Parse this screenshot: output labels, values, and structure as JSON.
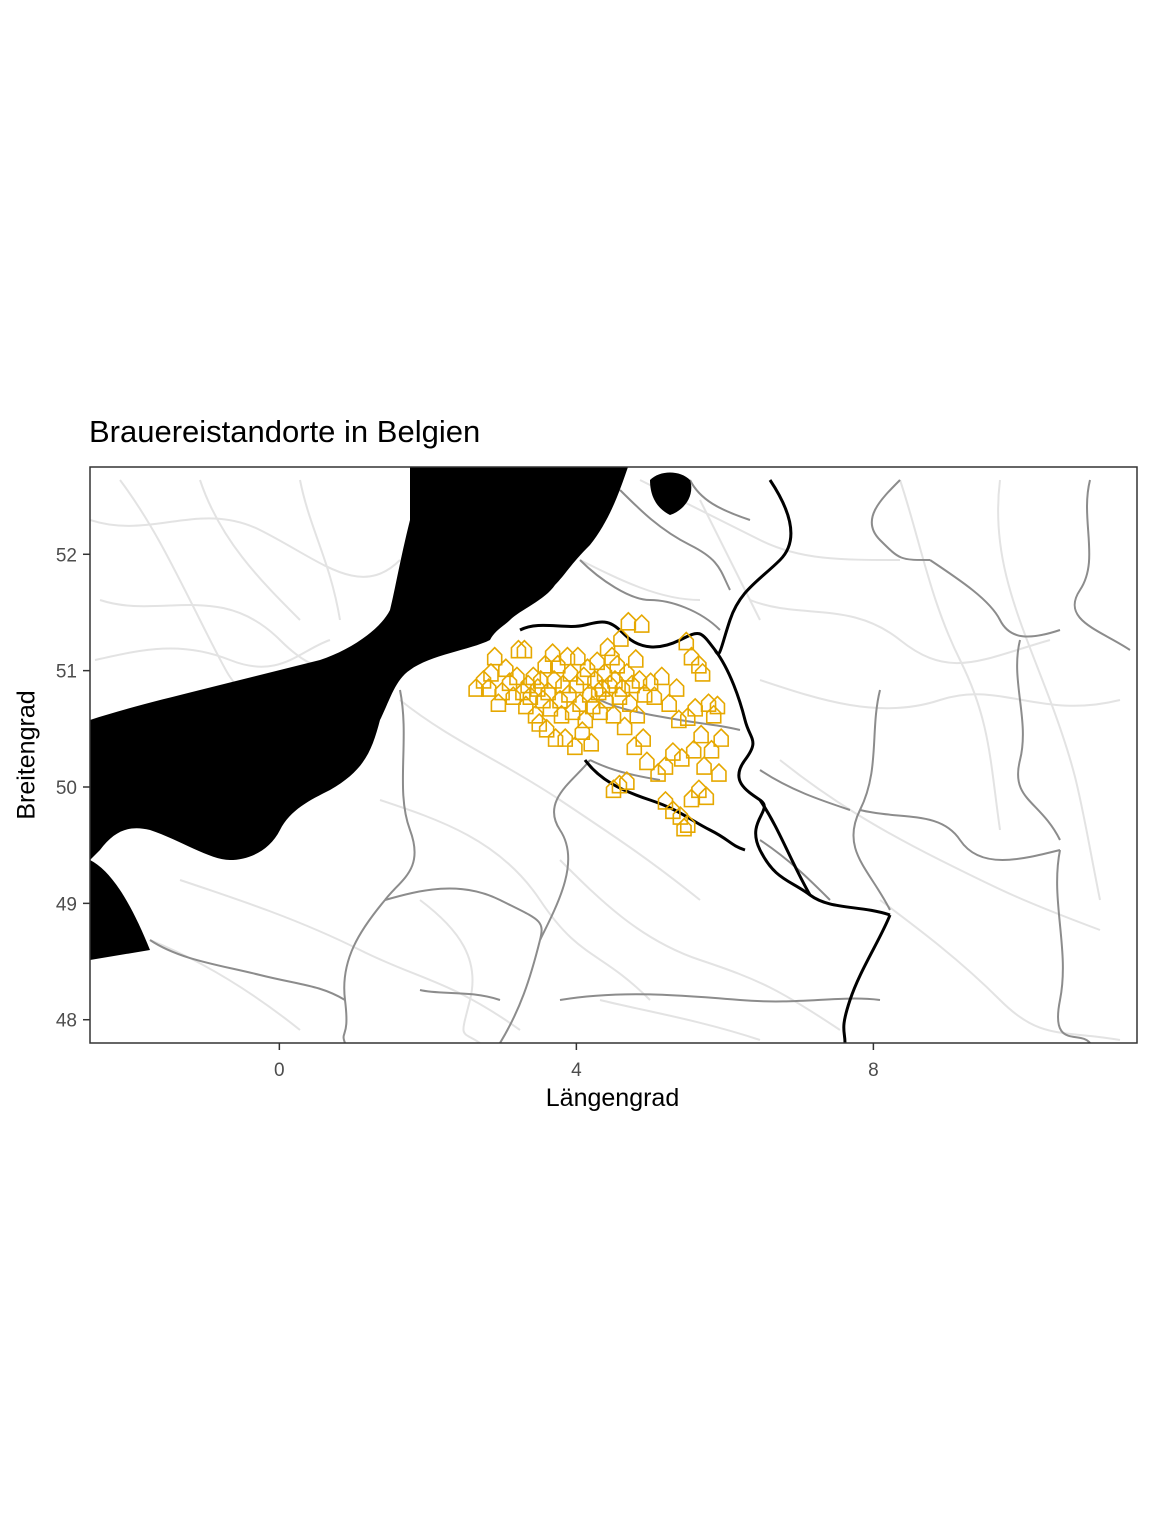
{
  "chart_data": {
    "type": "scatter",
    "title": "Brauereistandorte in Belgien",
    "xlabel": "Längengrad",
    "ylabel": "Breitengrad",
    "xlim": [
      -2.55,
      11.55
    ],
    "ylim": [
      47.8,
      52.75
    ],
    "x_ticks": [
      0,
      4,
      8
    ],
    "x_tick_labels": [
      "0",
      "4",
      "8"
    ],
    "y_ticks": [
      48,
      49,
      50,
      51,
      52
    ],
    "y_tick_labels": [
      "48",
      "49",
      "50",
      "51",
      "52"
    ],
    "grid": false,
    "legend": "none",
    "marker": "house-icon",
    "colors": {
      "marker": "#E6A800",
      "sea": "#000000",
      "national_border": "#000000",
      "regional_border": "#808080",
      "roads": "#e8e8e8",
      "panel_border": "#333333"
    },
    "points": [
      [
        2.65,
        50.85
      ],
      [
        2.75,
        50.92
      ],
      [
        2.82,
        50.85
      ],
      [
        2.85,
        50.98
      ],
      [
        2.9,
        51.12
      ],
      [
        2.95,
        50.72
      ],
      [
        3.0,
        50.82
      ],
      [
        3.05,
        51.02
      ],
      [
        3.1,
        50.9
      ],
      [
        3.15,
        50.78
      ],
      [
        3.2,
        50.95
      ],
      [
        3.22,
        51.18
      ],
      [
        3.28,
        50.82
      ],
      [
        3.3,
        51.18
      ],
      [
        3.32,
        50.7
      ],
      [
        3.35,
        50.88
      ],
      [
        3.38,
        50.78
      ],
      [
        3.42,
        50.95
      ],
      [
        3.45,
        50.62
      ],
      [
        3.48,
        50.85
      ],
      [
        3.5,
        50.55
      ],
      [
        3.52,
        50.92
      ],
      [
        3.55,
        50.75
      ],
      [
        3.58,
        51.05
      ],
      [
        3.6,
        50.5
      ],
      [
        3.62,
        50.82
      ],
      [
        3.65,
        50.68
      ],
      [
        3.68,
        51.15
      ],
      [
        3.7,
        50.92
      ],
      [
        3.72,
        50.42
      ],
      [
        3.75,
        51.05
      ],
      [
        3.78,
        50.75
      ],
      [
        3.8,
        50.62
      ],
      [
        3.82,
        50.88
      ],
      [
        3.85,
        50.42
      ],
      [
        3.88,
        51.12
      ],
      [
        3.9,
        50.8
      ],
      [
        3.92,
        50.98
      ],
      [
        3.95,
        50.65
      ],
      [
        3.98,
        50.35
      ],
      [
        4.0,
        50.88
      ],
      [
        4.02,
        51.12
      ],
      [
        4.05,
        50.72
      ],
      [
        4.08,
        50.48
      ],
      [
        4.1,
        50.95
      ],
      [
        4.12,
        50.58
      ],
      [
        4.15,
        51.02
      ],
      [
        4.18,
        50.8
      ],
      [
        4.2,
        50.38
      ],
      [
        4.22,
        50.7
      ],
      [
        4.25,
        50.92
      ],
      [
        4.28,
        51.08
      ],
      [
        4.3,
        50.82
      ],
      [
        4.32,
        50.65
      ],
      [
        4.35,
        50.85
      ],
      [
        4.38,
        50.98
      ],
      [
        4.4,
        50.75
      ],
      [
        4.42,
        51.2
      ],
      [
        4.45,
        50.88
      ],
      [
        4.48,
        51.12
      ],
      [
        4.5,
        50.62
      ],
      [
        4.52,
        50.92
      ],
      [
        4.55,
        51.05
      ],
      [
        4.58,
        50.78
      ],
      [
        4.6,
        51.28
      ],
      [
        4.62,
        50.85
      ],
      [
        4.65,
        50.52
      ],
      [
        4.68,
        50.98
      ],
      [
        4.7,
        51.42
      ],
      [
        4.72,
        50.72
      ],
      [
        4.75,
        50.88
      ],
      [
        4.78,
        50.35
      ],
      [
        4.8,
        51.1
      ],
      [
        4.82,
        50.62
      ],
      [
        4.85,
        50.92
      ],
      [
        4.88,
        51.4
      ],
      [
        4.9,
        50.42
      ],
      [
        4.92,
        50.8
      ],
      [
        4.95,
        50.22
      ],
      [
        5.0,
        50.9
      ],
      [
        5.05,
        50.78
      ],
      [
        5.1,
        50.12
      ],
      [
        5.15,
        50.95
      ],
      [
        5.2,
        50.18
      ],
      [
        5.25,
        50.72
      ],
      [
        5.3,
        50.3
      ],
      [
        5.35,
        50.85
      ],
      [
        5.38,
        50.58
      ],
      [
        5.42,
        50.25
      ],
      [
        5.48,
        51.25
      ],
      [
        5.5,
        50.6
      ],
      [
        5.55,
        51.12
      ],
      [
        5.58,
        50.32
      ],
      [
        5.6,
        50.68
      ],
      [
        5.65,
        51.05
      ],
      [
        5.68,
        50.45
      ],
      [
        5.7,
        50.98
      ],
      [
        5.72,
        50.18
      ],
      [
        5.78,
        50.72
      ],
      [
        5.82,
        50.32
      ],
      [
        5.85,
        50.62
      ],
      [
        5.9,
        50.7
      ],
      [
        5.95,
        50.42
      ],
      [
        5.92,
        50.12
      ],
      [
        5.3,
        49.8
      ],
      [
        5.4,
        49.75
      ],
      [
        5.45,
        49.65
      ],
      [
        5.5,
        49.68
      ],
      [
        5.55,
        49.9
      ],
      [
        5.65,
        49.98
      ],
      [
        5.75,
        49.92
      ],
      [
        5.2,
        49.88
      ],
      [
        4.5,
        49.98
      ],
      [
        4.58,
        50.02
      ],
      [
        4.68,
        50.05
      ]
    ]
  }
}
